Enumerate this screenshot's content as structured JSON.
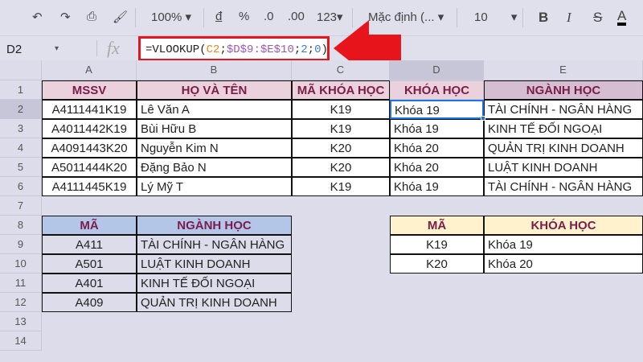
{
  "toolbar": {
    "zoom": "100%",
    "currency": "đ",
    "percent": "%",
    "dec_dec": ".0",
    "inc_dec": ".00",
    "format": "123",
    "font": "Mặc định (...",
    "size": "10",
    "bold": "B",
    "italic": "I",
    "strike": "S",
    "color": "A"
  },
  "formula_bar": {
    "name_box": "D2",
    "fx": "fx",
    "formula_parts": [
      {
        "t": "=VLOOKUP(",
        "c": "#222"
      },
      {
        "t": "C2",
        "c": "#e8891b"
      },
      {
        "t": ";",
        "c": "#222"
      },
      {
        "t": "$D$9:$E$10",
        "c": "#9b59b6"
      },
      {
        "t": ";",
        "c": "#222"
      },
      {
        "t": "2",
        "c": "#3a78d8"
      },
      {
        "t": ";",
        "c": "#222"
      },
      {
        "t": "0",
        "c": "#3a78d8"
      },
      {
        "t": ")",
        "c": "#222"
      }
    ]
  },
  "columns": [
    "A",
    "B",
    "C",
    "D",
    "E"
  ],
  "rows": [
    "1",
    "2",
    "3",
    "4",
    "5",
    "6",
    "7",
    "8",
    "9",
    "10",
    "11",
    "12",
    "13",
    "14"
  ],
  "main_table": {
    "headers": [
      "MSSV",
      "HỌ VÀ TÊN",
      "MÃ KHÓA HỌC",
      "KHÓA HỌC",
      "NGÀNH HỌC"
    ],
    "rows": [
      [
        "A4111441K19",
        "Lê Văn A",
        "K19",
        "Khóa 19",
        "TÀI CHÍNH - NGÂN HÀNG"
      ],
      [
        "A4011442K19",
        "Bùi Hữu B",
        "K19",
        "Khóa 19",
        "KINH TẾ ĐỐI NGOẠI"
      ],
      [
        "A4091443K20",
        "Nguyễn Kim N",
        "K20",
        "Khóa 20",
        "QUẢN TRỊ KINH DOANH"
      ],
      [
        "A5011444K20",
        "Đặng Bảo N",
        "K20",
        "Khóa 20",
        "LUẬT KINH DOANH"
      ],
      [
        "A4111445K19",
        "Lý Mỹ T",
        "K19",
        "Khóa 19",
        "TÀI CHÍNH - NGÂN HÀNG"
      ]
    ]
  },
  "major_table": {
    "headers": [
      "MÃ",
      "NGÀNH HỌC"
    ],
    "rows": [
      [
        "A411",
        "TÀI CHÍNH - NGÂN HÀNG"
      ],
      [
        "A501",
        "LUẬT KINH DOANH"
      ],
      [
        "A401",
        "KINH TẾ ĐỐI NGOẠI"
      ],
      [
        "A409",
        "QUẢN TRỊ KINH DOANH"
      ]
    ]
  },
  "course_table": {
    "headers": [
      "MÃ",
      "KHÓA HỌC"
    ],
    "rows": [
      [
        "K19",
        "Khóa 19"
      ],
      [
        "K20",
        "Khóa 20"
      ]
    ]
  },
  "colors": {
    "header_pink": "#ead1dc",
    "header_mauve": "#d5bdd2",
    "header_blue": "#b4c6e7",
    "header_yellow": "#fff2cc",
    "header_text": "#7a1d4b",
    "selection": "#1a73e8",
    "arrow": "#e8141b"
  }
}
